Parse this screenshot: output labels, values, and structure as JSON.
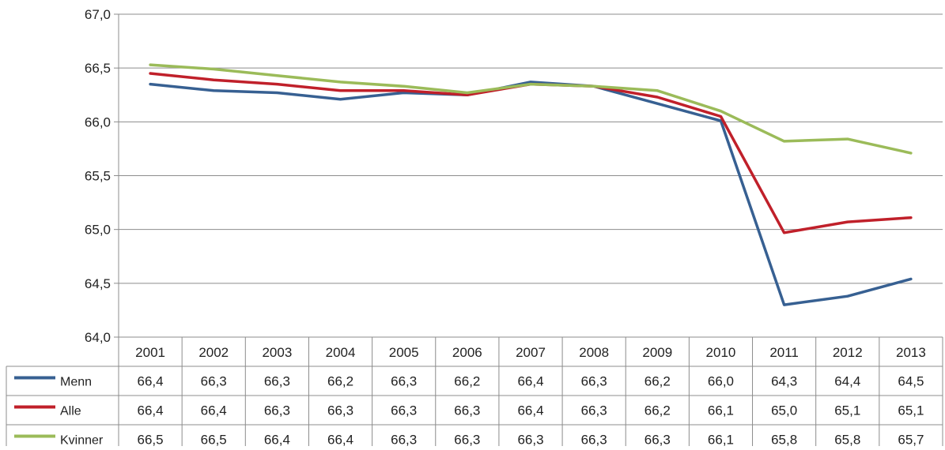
{
  "chart_data": {
    "type": "line",
    "title": "",
    "xlabel": "",
    "ylabel": "",
    "categories": [
      "2001",
      "2002",
      "2003",
      "2004",
      "2005",
      "2006",
      "2007",
      "2008",
      "2009",
      "2010",
      "2011",
      "2012",
      "2013"
    ],
    "ylim": [
      64.0,
      67.0
    ],
    "yticks": [
      "64,0",
      "64,5",
      "65,0",
      "65,5",
      "66,0",
      "66,5",
      "67,0"
    ],
    "ytick_values": [
      64.0,
      64.5,
      65.0,
      65.5,
      66.0,
      66.5,
      67.0
    ],
    "grid": "horizontal",
    "legend": "data-table",
    "series": [
      {
        "name": "Menn",
        "color": "#376092",
        "values": [
          66.35,
          66.29,
          66.27,
          66.21,
          66.27,
          66.25,
          66.37,
          66.33,
          66.17,
          66.01,
          64.3,
          64.38,
          64.54
        ],
        "labels": [
          "66,4",
          "66,3",
          "66,3",
          "66,2",
          "66,3",
          "66,2",
          "66,4",
          "66,3",
          "66,2",
          "66,0",
          "64,3",
          "64,4",
          "64,5"
        ]
      },
      {
        "name": "Alle",
        "color": "#C0202A",
        "values": [
          66.45,
          66.39,
          66.35,
          66.29,
          66.29,
          66.25,
          66.35,
          66.33,
          66.23,
          66.05,
          64.97,
          65.07,
          65.11
        ],
        "labels": [
          "66,4",
          "66,4",
          "66,3",
          "66,3",
          "66,3",
          "66,3",
          "66,4",
          "66,3",
          "66,2",
          "66,1",
          "65,0",
          "65,1",
          "65,1"
        ]
      },
      {
        "name": "Kvinner",
        "color": "#9BBB59",
        "values": [
          66.53,
          66.49,
          66.43,
          66.37,
          66.33,
          66.27,
          66.35,
          66.33,
          66.29,
          66.1,
          65.82,
          65.84,
          65.71
        ],
        "labels": [
          "66,5",
          "66,5",
          "66,4",
          "66,4",
          "66,3",
          "66,3",
          "66,3",
          "66,3",
          "66,3",
          "66,1",
          "65,8",
          "65,8",
          "65,7"
        ]
      }
    ]
  }
}
